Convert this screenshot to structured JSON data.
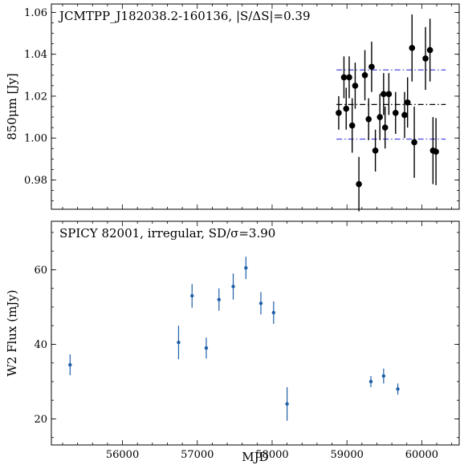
{
  "chart_data": [
    {
      "type": "scatter",
      "title": "JCMTPP_J182038.2-160136, |S/ΔS|=0.39",
      "xlabel": "",
      "ylabel": "850μm [Jy]",
      "xlim": [
        55050,
        60500
      ],
      "ylim": [
        0.966,
        1.064
      ],
      "yticks": [
        0.98,
        1.0,
        1.02,
        1.04,
        1.06
      ],
      "ytick_labels": [
        "0.98",
        "1.00",
        "1.02",
        "1.04",
        "1.06"
      ],
      "grid": false,
      "marker_color": "#000000",
      "series": [
        {
          "x": [
            58890,
            58960,
            58990,
            59030,
            59070,
            59110,
            59160,
            59240,
            59290,
            59330,
            59380,
            59440,
            59490,
            59510,
            59560,
            59650,
            59770,
            59810,
            59870,
            59900,
            60050,
            60110,
            60150,
            60190
          ],
          "y": [
            1.012,
            1.029,
            1.014,
            1.029,
            1.006,
            1.025,
            0.978,
            1.03,
            1.009,
            1.034,
            0.994,
            1.01,
            1.021,
            1.005,
            1.021,
            1.012,
            1.011,
            1.017,
            1.043,
            0.998,
            1.038,
            1.042,
            0.994,
            0.9935
          ],
          "yerr": [
            0.008,
            0.01,
            0.01,
            0.01,
            0.013,
            0.011,
            0.013,
            0.012,
            0.01,
            0.012,
            0.01,
            0.011,
            0.01,
            0.01,
            0.01,
            0.01,
            0.011,
            0.012,
            0.016,
            0.017,
            0.015,
            0.015,
            0.016,
            0.016
          ]
        }
      ],
      "reference_lines": [
        {
          "y": 1.016,
          "x_range": [
            58860,
            60320
          ],
          "color": "#000000",
          "style": "dashdot"
        },
        {
          "y": 1.0325,
          "x_range": [
            58860,
            60320
          ],
          "color": "#4a4ae0",
          "style": "dashdot"
        },
        {
          "y": 0.9995,
          "x_range": [
            58860,
            60320
          ],
          "color": "#4a4ae0",
          "style": "dashdot"
        }
      ]
    },
    {
      "type": "scatter",
      "title": "SPICY 82001, irregular, SD/σ=3.90",
      "xlabel": "MJD",
      "ylabel": "W2 Flux (mJy)",
      "xlim": [
        55050,
        60500
      ],
      "ylim": [
        13,
        73
      ],
      "xticks": [
        56000,
        57000,
        58000,
        59000,
        60000
      ],
      "xtick_labels": [
        "56000",
        "57000",
        "58000",
        "59000",
        "60000"
      ],
      "yticks": [
        20,
        40,
        60
      ],
      "ytick_labels": [
        "20",
        "40",
        "60"
      ],
      "grid": false,
      "marker_color": "#1f5fa8",
      "series": [
        {
          "x": [
            55300,
            56750,
            56930,
            57120,
            57290,
            57480,
            57650,
            57850,
            58020,
            58200,
            59320,
            59490,
            59680
          ],
          "y": [
            34.5,
            40.5,
            53.0,
            39.0,
            52.0,
            55.5,
            60.5,
            51.0,
            48.5,
            24.0,
            30.0,
            31.5,
            28.0
          ],
          "yerr": [
            2.8,
            4.5,
            3.2,
            2.8,
            3.0,
            3.5,
            3.0,
            3.0,
            3.0,
            4.5,
            1.5,
            2.0,
            1.5
          ]
        }
      ]
    }
  ]
}
